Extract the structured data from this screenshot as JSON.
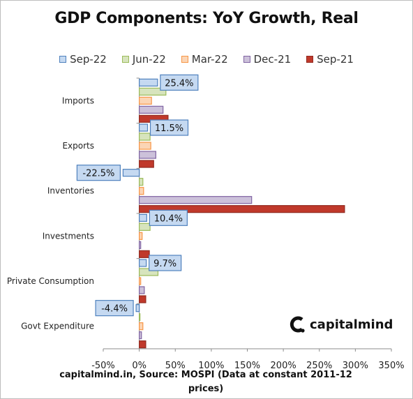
{
  "chart_data": {
    "type": "bar",
    "orientation": "horizontal",
    "title": "GDP Components: YoY Growth, Real",
    "categories": [
      "Imports",
      "Exports",
      "Inventories",
      "Investments",
      "Private Consumption",
      "Govt Expenditure"
    ],
    "series": [
      {
        "name": "Sep-22",
        "values": [
          25.4,
          11.5,
          -22.5,
          10.4,
          9.7,
          -4.4
        ],
        "color": "#c5d9f1",
        "border": "#4f81bd"
      },
      {
        "name": "Jun-22",
        "values": [
          37,
          15,
          5,
          15,
          26,
          1
        ],
        "color": "#d7e4bd",
        "border": "#9bbb59"
      },
      {
        "name": "Mar-22",
        "values": [
          17,
          16,
          6,
          4,
          2,
          5
        ],
        "color": "#fbd5b5",
        "border": "#f79646"
      },
      {
        "name": "Dec-21",
        "values": [
          33,
          23,
          156,
          2,
          7,
          3
        ],
        "color": "#ccc1da",
        "border": "#8064a2"
      },
      {
        "name": "Sep-21",
        "values": [
          40,
          20,
          285,
          14,
          9,
          9
        ],
        "color": "#c0392b",
        "border": "#922b21"
      }
    ],
    "data_labels": [
      "25.4%",
      "11.5%",
      "-22.5%",
      "10.4%",
      "9.7%",
      "-4.4%"
    ],
    "x_ticks": [
      "-50%",
      "0%",
      "50%",
      "100%",
      "150%",
      "200%",
      "250%",
      "300%",
      "350%"
    ],
    "xlim": [
      -50,
      350
    ],
    "legend_position": "top",
    "grid": false
  },
  "footer": {
    "line1": "capitalmind.in, Source: MOSPI (Data at constant 2011-12",
    "line2": "prices)"
  },
  "brand": {
    "name": "capitalmind"
  }
}
